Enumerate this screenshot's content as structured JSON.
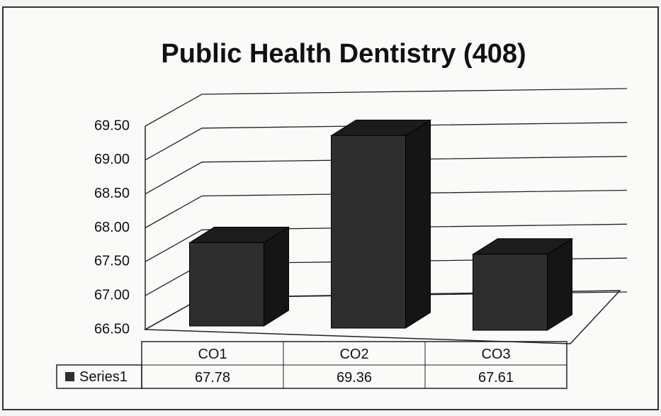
{
  "chart_data": {
    "type": "bar3d",
    "title": "Public Health Dentistry (408)",
    "categories": [
      "CO1",
      "CO2",
      "CO3"
    ],
    "series": [
      {
        "name": "Series1",
        "color": "#2e2e2e",
        "values": [
          67.78,
          69.36,
          67.61
        ]
      }
    ],
    "ylim": [
      66.5,
      69.5
    ],
    "yticks": [
      {
        "value": 66.5,
        "label": "66.50"
      },
      {
        "value": 67,
        "label": "67.00"
      },
      {
        "value": 67.5,
        "label": "67.50"
      },
      {
        "value": 68,
        "label": "68.00"
      },
      {
        "value": 68.5,
        "label": "68.50"
      },
      {
        "value": 69,
        "label": "69.00"
      },
      {
        "value": 69.5,
        "label": "69.50"
      }
    ],
    "grid": true,
    "data_table": true
  }
}
